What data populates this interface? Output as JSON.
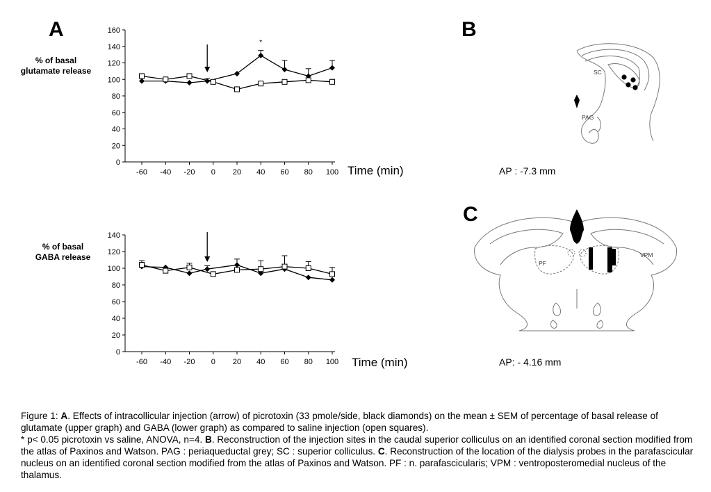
{
  "panels": {
    "a": "A",
    "b": "B",
    "c": "C"
  },
  "chart_data": [
    {
      "type": "line",
      "ylabel": [
        "% of basal",
        "glutamate release"
      ],
      "xlabel": "Time (min)",
      "x": [
        -60,
        -40,
        -20,
        0,
        20,
        40,
        60,
        80,
        100
      ],
      "ylim": [
        0,
        160
      ],
      "yticks": [
        0,
        20,
        40,
        60,
        80,
        100,
        120,
        140,
        160
      ],
      "injection_time": -5,
      "annotation": {
        "text": "*",
        "x": 40
      },
      "series": [
        {
          "marker": "diamond-filled",
          "x": [
            -60,
            -40,
            -20,
            -5,
            20,
            40,
            60,
            80,
            100
          ],
          "values": [
            98,
            98,
            96,
            98,
            107,
            129,
            112,
            104,
            114
          ],
          "err": [
            0,
            0,
            0,
            3,
            0,
            6,
            11,
            9,
            9
          ]
        },
        {
          "marker": "square-open",
          "x": [
            -60,
            -40,
            -20,
            0,
            20,
            40,
            60,
            80,
            100
          ],
          "values": [
            104,
            100,
            104,
            97,
            88,
            95,
            97,
            99,
            97
          ],
          "err": [
            3,
            2,
            3,
            2,
            3,
            0,
            0,
            0,
            3
          ]
        }
      ]
    },
    {
      "type": "line",
      "ylabel": [
        "% of basal",
        "GABA release"
      ],
      "xlabel": "Time (min)",
      "x": [
        -60,
        -40,
        -20,
        0,
        20,
        40,
        60,
        80,
        100
      ],
      "ylim": [
        0,
        140
      ],
      "yticks": [
        0,
        20,
        40,
        60,
        80,
        100,
        120,
        140
      ],
      "injection_time": -5,
      "series": [
        {
          "marker": "diamond-filled",
          "x": [
            -60,
            -40,
            -20,
            -5,
            20,
            40,
            60,
            80,
            100
          ],
          "values": [
            102,
            101,
            94,
            99,
            104,
            94,
            99,
            89,
            86
          ],
          "err": [
            5,
            0,
            0,
            4,
            7,
            0,
            0,
            0,
            0
          ]
        },
        {
          "marker": "square-open",
          "x": [
            -60,
            -40,
            -20,
            0,
            20,
            40,
            60,
            80,
            100
          ],
          "values": [
            104,
            97,
            101,
            93,
            98,
            99,
            102,
            100,
            93
          ],
          "err": [
            5,
            0,
            5,
            0,
            0,
            10,
            13,
            8,
            8
          ]
        }
      ]
    }
  ],
  "diagram_b": {
    "labels": [
      "SC",
      "PAG"
    ],
    "ap": "AP : -7.3 mm"
  },
  "diagram_c": {
    "labels": [
      "PF",
      "VPM"
    ],
    "ap": "AP: - 4.16 mm"
  },
  "caption": {
    "p1_pre": "Figure 1: ",
    "p1_bold": "A",
    "p1_text": ". Effects of intracollicular injection (arrow) of picrotoxin (33 pmole/side, black diamonds) on the mean ± SEM of percentage of basal release of glutamate (upper graph) and GABA (lower graph) as compared to saline injection (open squares).",
    "p2_pre": "* p< 0.05 picrotoxin vs saline, ANOVA, n=4. ",
    "p2_bold1": "B",
    "p2_text1": ". Reconstruction of the injection sites in the caudal superior colliculus on an identified coronal section modified from the atlas of Paxinos and Watson. PAG : periaqueductal grey; SC : superior colliculus. ",
    "p2_bold2": "C",
    "p2_text2": ". Reconstruction of the location of the dialysis probes in the parafascicular nucleus on an identified coronal section modified from the atlas of Paxinos and Watson. PF : n. parafascicularis; VPM : ventroposteromedial nucleus of the thalamus."
  }
}
